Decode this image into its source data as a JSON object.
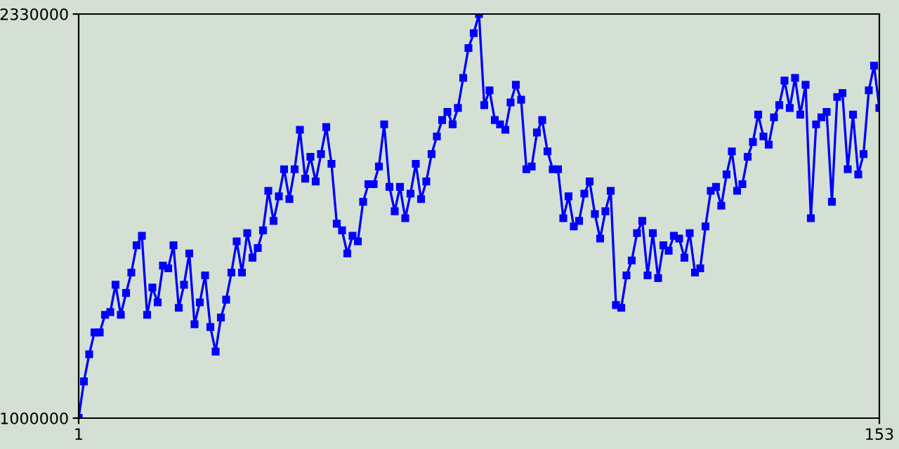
{
  "chart_data": {
    "type": "line",
    "x": [
      1,
      2,
      3,
      4,
      5,
      6,
      7,
      8,
      9,
      10,
      11,
      12,
      13,
      14,
      15,
      16,
      17,
      18,
      19,
      20,
      21,
      22,
      23,
      24,
      25,
      26,
      27,
      28,
      29,
      30,
      31,
      32,
      33,
      34,
      35,
      36,
      37,
      38,
      39,
      40,
      41,
      42,
      43,
      44,
      45,
      46,
      47,
      48,
      49,
      50,
      51,
      52,
      53,
      54,
      55,
      56,
      57,
      58,
      59,
      60,
      61,
      62,
      63,
      64,
      65,
      66,
      67,
      68,
      69,
      70,
      71,
      72,
      73,
      74,
      75,
      76,
      77,
      78,
      79,
      80,
      81,
      82,
      83,
      84,
      85,
      86,
      87,
      88,
      89,
      90,
      91,
      92,
      93,
      94,
      95,
      96,
      97,
      98,
      99,
      100,
      101,
      102,
      103,
      104,
      105,
      106,
      107,
      108,
      109,
      110,
      111,
      112,
      113,
      114,
      115,
      116,
      117,
      118,
      119,
      120,
      121,
      122,
      123,
      124,
      125,
      126,
      127,
      128,
      129,
      130,
      131,
      132,
      133,
      134,
      135,
      136,
      137,
      138,
      139,
      140,
      141,
      142,
      143,
      144,
      145,
      146,
      147,
      148,
      149,
      150,
      151,
      152,
      153
    ],
    "series": [
      {
        "color": "#0000ff",
        "values": [
          1001000,
          1121000,
          1210000,
          1282000,
          1282000,
          1340000,
          1349000,
          1439000,
          1340000,
          1412000,
          1479000,
          1569000,
          1600000,
          1340000,
          1430000,
          1381000,
          1502000,
          1493000,
          1569000,
          1363000,
          1439000,
          1542000,
          1309000,
          1381000,
          1470000,
          1300000,
          1219000,
          1331000,
          1390000,
          1479000,
          1582000,
          1479000,
          1609000,
          1528000,
          1560000,
          1618000,
          1748000,
          1649000,
          1730000,
          1819000,
          1721000,
          1819000,
          1949000,
          1788000,
          1860000,
          1779000,
          1869000,
          1958000,
          1837000,
          1640000,
          1618000,
          1542000,
          1600000,
          1582000,
          1712000,
          1770000,
          1770000,
          1828000,
          1967000,
          1761000,
          1681000,
          1761000,
          1658000,
          1739000,
          1837000,
          1721000,
          1779000,
          1869000,
          1927000,
          1981000,
          2008000,
          1967000,
          2021000,
          2120000,
          2218000,
          2267000,
          2330000,
          2030000,
          2079000,
          1981000,
          1967000,
          1949000,
          2039000,
          2097000,
          2048000,
          1819000,
          1828000,
          1940000,
          1981000,
          1878000,
          1819000,
          1819000,
          1658000,
          1730000,
          1631000,
          1649000,
          1739000,
          1779000,
          1672000,
          1591000,
          1681000,
          1748000,
          1372000,
          1363000,
          1470000,
          1519000,
          1609000,
          1649000,
          1470000,
          1609000,
          1461000,
          1569000,
          1551000,
          1600000,
          1591000,
          1528000,
          1609000,
          1479000,
          1493000,
          1631000,
          1748000,
          1761000,
          1699000,
          1802000,
          1878000,
          1748000,
          1770000,
          1860000,
          1909000,
          1999000,
          1927000,
          1900000,
          1990000,
          2030000,
          2111000,
          2021000,
          2120000,
          1999000,
          2097000,
          1658000,
          1967000,
          1990000,
          2008000,
          1712000,
          2057000,
          2070000,
          1819000,
          1999000,
          1802000,
          1869000,
          2079000,
          2160000,
          2021000
        ]
      }
    ],
    "xlim": [
      1,
      153
    ],
    "xticks": [
      1,
      153
    ],
    "ylim": [
      1000000,
      2330000
    ],
    "yticks": [
      1000000,
      2330000
    ],
    "marker": "square",
    "line_style": "solid"
  }
}
